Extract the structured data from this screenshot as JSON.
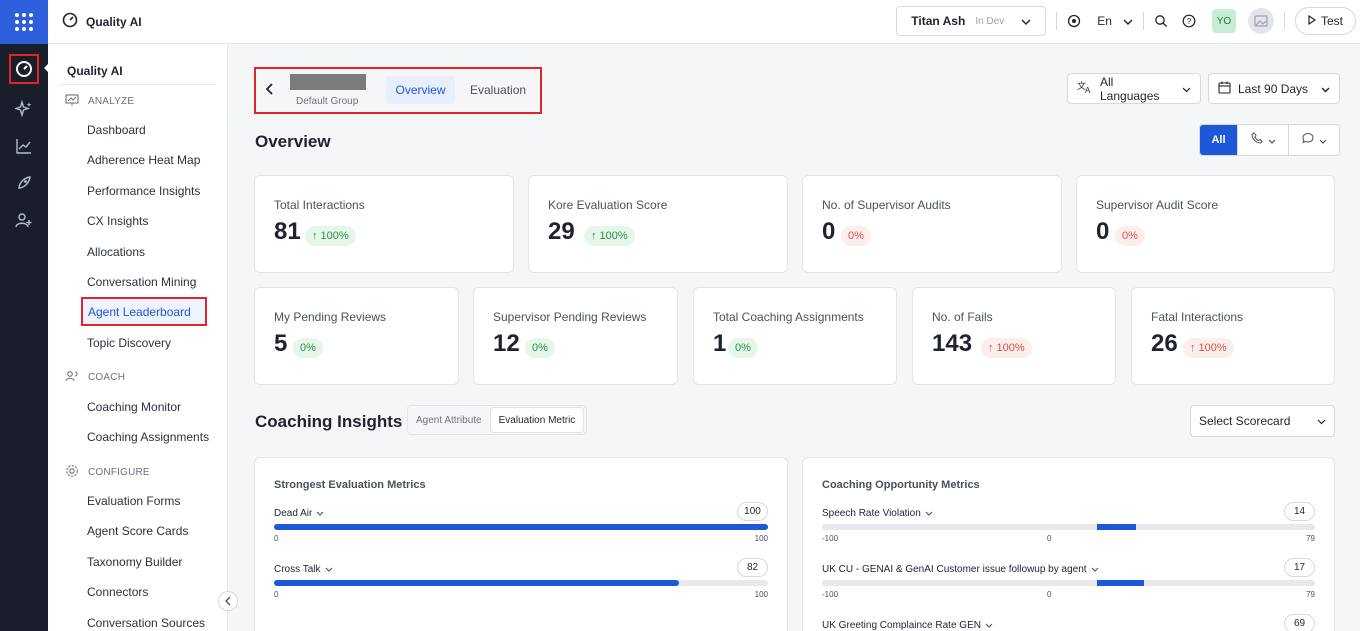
{
  "app": {
    "title": "Quality AI"
  },
  "topbar": {
    "workspace_name": "Titan Ash",
    "workspace_env": "In Dev",
    "language": "En",
    "avatar_initials": "YO",
    "test_label": "Test"
  },
  "sidebar": {
    "title": "Quality AI",
    "sections": {
      "analyze": "ANALYZE",
      "coach": "COACH",
      "configure": "CONFIGURE"
    },
    "items": {
      "dashboard": "Dashboard",
      "adherence": "Adherence Heat Map",
      "performance": "Performance Insights",
      "cx": "CX Insights",
      "allocations": "Allocations",
      "mining": "Conversation Mining",
      "leaderboard": "Agent Leaderboard",
      "topic": "Topic Discovery",
      "coaching_monitor": "Coaching Monitor",
      "coaching_assignments": "Coaching Assignments",
      "eval_forms": "Evaluation Forms",
      "score_cards": "Agent Score Cards",
      "taxonomy": "Taxonomy Builder",
      "connectors": "Connectors",
      "conv_sources": "Conversation Sources"
    }
  },
  "header": {
    "group_label": "Default Group",
    "tabs": {
      "overview": "Overview",
      "evaluation": "Evaluation"
    },
    "languages_filter": "All Languages",
    "date_filter": "Last 90 Days"
  },
  "overview": {
    "title": "Overview",
    "channel_all": "All",
    "cards": [
      {
        "label": "Total Interactions",
        "value": "81",
        "delta": "100%"
      },
      {
        "label": "Kore Evaluation Score",
        "value": "29",
        "delta": "100%"
      },
      {
        "label": "No. of Supervisor Audits",
        "value": "0",
        "delta": "0%"
      },
      {
        "label": "Supervisor Audit Score",
        "value": "0",
        "delta": "0%"
      },
      {
        "label": "My Pending Reviews",
        "value": "5",
        "delta": "0%"
      },
      {
        "label": "Supervisor Pending Reviews",
        "value": "12",
        "delta": "0%"
      },
      {
        "label": "Total Coaching Assignments",
        "value": "1",
        "delta": "0%"
      },
      {
        "label": "No. of Fails",
        "value": "143",
        "delta": "100%"
      },
      {
        "label": "Fatal Interactions",
        "value": "26",
        "delta": "100%"
      }
    ]
  },
  "coaching": {
    "title": "Coaching Insights",
    "toggle": {
      "attribute": "Agent Attribute",
      "metric": "Evaluation Metric"
    },
    "scorecard_placeholder": "Select Scorecard",
    "strongest": {
      "title": "Strongest Evaluation Metrics",
      "items": [
        {
          "name": "Dead Air",
          "value": "100",
          "min": "0",
          "max": "100",
          "fill": 1.0
        },
        {
          "name": "Cross Talk",
          "value": "82",
          "min": "0",
          "max": "100",
          "fill": 0.82
        }
      ]
    },
    "opportunity": {
      "title": "Coaching Opportunity Metrics",
      "items": [
        {
          "name": "Speech Rate Violation",
          "value": "14",
          "min": "-100",
          "mid": "0",
          "max": "79"
        },
        {
          "name": "UK CU - GENAI & GenAI Customer issue followup by agent",
          "value": "17",
          "min": "-100",
          "mid": "0",
          "max": "79"
        },
        {
          "name": "UK Greeting Complaince Rate GEN",
          "value": "69"
        }
      ]
    }
  }
}
